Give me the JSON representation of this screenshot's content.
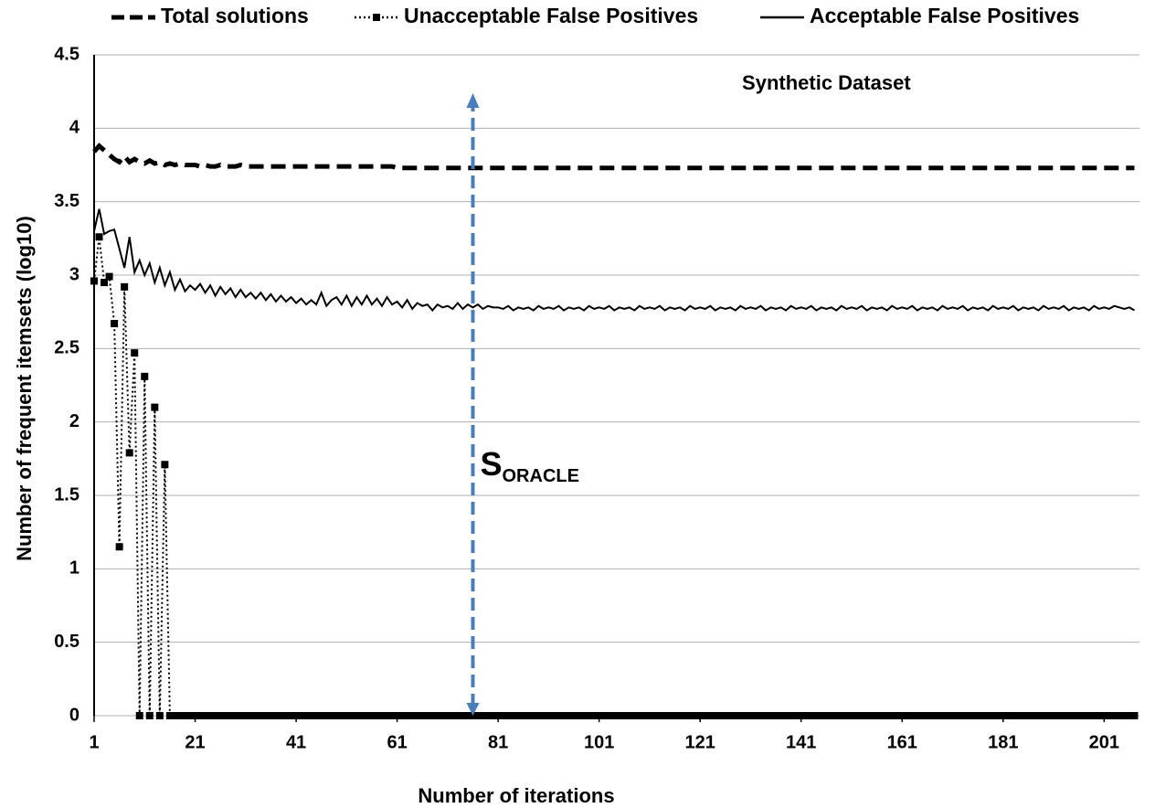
{
  "chart_data": {
    "type": "line",
    "x_label": "Number of iterations",
    "y_label": "Number of frequent itemsets (log10)",
    "annotations": [
      {
        "text": "Synthetic Dataset",
        "x": 146,
        "y": 4.3
      },
      {
        "text": "S",
        "subscript": "ORACLE",
        "x": 76,
        "y": 1.7
      }
    ],
    "xlim": [
      1,
      208
    ],
    "xticks": [
      1,
      21,
      41,
      61,
      81,
      101,
      121,
      141,
      161,
      181,
      201
    ],
    "ylim": [
      0,
      4.5
    ],
    "yticks": [
      0,
      0.5,
      1,
      1.5,
      2,
      2.5,
      3,
      3.5,
      4,
      4.5
    ],
    "grid": true,
    "legend": "top",
    "x": [
      1,
      2,
      3,
      4,
      5,
      6,
      7,
      8,
      9,
      10,
      11,
      12,
      13,
      14,
      15,
      16,
      17,
      18,
      19,
      20,
      21,
      22,
      23,
      24,
      25,
      26,
      27,
      28,
      29,
      30,
      31,
      32,
      33,
      34,
      35,
      36,
      37,
      38,
      39,
      40,
      41,
      42,
      43,
      44,
      45,
      46,
      47,
      48,
      49,
      50,
      51,
      52,
      53,
      54,
      55,
      56,
      57,
      58,
      59,
      60,
      61,
      62,
      63,
      64,
      65,
      66,
      67,
      68,
      69,
      70,
      71,
      72,
      73,
      74,
      75,
      76,
      77,
      78,
      79,
      80,
      81,
      82,
      83,
      84,
      85,
      86,
      87,
      88,
      89,
      90,
      91,
      92,
      93,
      94,
      95,
      96,
      97,
      98,
      99,
      100,
      101,
      102,
      103,
      104,
      105,
      106,
      107,
      108,
      109,
      110,
      111,
      112,
      113,
      114,
      115,
      116,
      117,
      118,
      119,
      120,
      121,
      122,
      123,
      124,
      125,
      126,
      127,
      128,
      129,
      130,
      131,
      132,
      133,
      134,
      135,
      136,
      137,
      138,
      139,
      140,
      141,
      142,
      143,
      144,
      145,
      146,
      147,
      148,
      149,
      150,
      151,
      152,
      153,
      154,
      155,
      156,
      157,
      158,
      159,
      160,
      161,
      162,
      163,
      164,
      165,
      166,
      167,
      168,
      169,
      170,
      171,
      172,
      173,
      174,
      175,
      176,
      177,
      178,
      179,
      180,
      181,
      182,
      183,
      184,
      185,
      186,
      187,
      188,
      189,
      190,
      191,
      192,
      193,
      194,
      195,
      196,
      197,
      198,
      199,
      200,
      201,
      202,
      203,
      204,
      205,
      206,
      207
    ],
    "series": [
      {
        "name": "Total solutions",
        "color": "#000000",
        "style": "dashed",
        "marker": "none",
        "values": [
          3.84,
          3.88,
          3.85,
          3.82,
          3.79,
          3.77,
          3.81,
          3.77,
          3.79,
          3.77,
          3.76,
          3.78,
          3.76,
          3.77,
          3.75,
          3.76,
          3.75,
          3.76,
          3.75,
          3.75,
          3.75,
          3.74,
          3.75,
          3.74,
          3.74,
          3.75,
          3.74,
          3.74,
          3.74,
          3.75,
          3.74,
          3.74,
          3.74,
          3.74,
          3.74,
          3.74,
          3.74,
          3.74,
          3.74,
          3.74,
          3.74,
          3.74,
          3.74,
          3.74,
          3.74,
          3.74,
          3.74,
          3.74,
          3.74,
          3.74,
          3.74,
          3.74,
          3.74,
          3.74,
          3.74,
          3.74,
          3.74,
          3.74,
          3.74,
          3.74,
          3.73,
          3.73,
          3.73,
          3.73,
          3.73,
          3.73,
          3.73,
          3.73,
          3.73,
          3.73,
          3.73,
          3.73,
          3.73,
          3.73,
          3.73,
          3.73,
          3.73,
          3.73,
          3.73,
          3.73,
          3.73,
          3.73,
          3.73,
          3.73,
          3.73,
          3.73,
          3.73,
          3.73,
          3.73,
          3.73,
          3.73,
          3.73,
          3.73,
          3.73,
          3.73,
          3.73,
          3.73,
          3.73,
          3.73,
          3.73,
          3.73,
          3.73,
          3.73,
          3.73,
          3.73,
          3.73,
          3.73,
          3.73,
          3.73,
          3.73,
          3.73,
          3.73,
          3.73,
          3.73,
          3.73,
          3.73,
          3.73,
          3.73,
          3.73,
          3.73,
          3.73,
          3.73,
          3.73,
          3.73,
          3.73,
          3.73,
          3.73,
          3.73,
          3.73,
          3.73,
          3.73,
          3.73,
          3.73,
          3.73,
          3.73,
          3.73,
          3.73,
          3.73,
          3.73,
          3.73,
          3.73,
          3.73,
          3.73,
          3.73,
          3.73,
          3.73,
          3.73,
          3.73,
          3.73,
          3.73,
          3.73,
          3.73,
          3.73,
          3.73,
          3.73,
          3.73,
          3.73,
          3.73,
          3.73,
          3.73,
          3.73,
          3.73,
          3.73,
          3.73,
          3.73,
          3.73,
          3.73,
          3.73,
          3.73,
          3.73,
          3.73,
          3.73,
          3.73,
          3.73,
          3.73,
          3.73,
          3.73,
          3.73,
          3.73,
          3.73,
          3.73,
          3.73,
          3.73,
          3.73,
          3.73,
          3.73,
          3.73,
          3.73,
          3.73,
          3.73,
          3.73,
          3.73,
          3.73,
          3.73,
          3.73,
          3.73,
          3.73,
          3.73,
          3.73,
          3.73,
          3.73,
          3.73,
          3.73,
          3.73,
          3.73,
          3.73,
          3.73
        ]
      },
      {
        "name": "Unacceptable False Positives",
        "color": "#000000",
        "style": "dotted",
        "marker": "square",
        "values": [
          2.96,
          3.26,
          2.95,
          2.99,
          2.67,
          1.15,
          2.92,
          1.79,
          2.47,
          0,
          2.31,
          0,
          2.1,
          0,
          1.71,
          0,
          0,
          0,
          0,
          0,
          0,
          0,
          0,
          0,
          0,
          0,
          0,
          0,
          0,
          0,
          0,
          0,
          0,
          0,
          0,
          0,
          0,
          0,
          0,
          0,
          0,
          0,
          0,
          0,
          0,
          0,
          0,
          0,
          0,
          0,
          0,
          0,
          0,
          0,
          0,
          0,
          0,
          0,
          0,
          0,
          0,
          0,
          0,
          0,
          0,
          0,
          0,
          0,
          0,
          0,
          0,
          0,
          0,
          0,
          0,
          0,
          0,
          0,
          0,
          0,
          0,
          0,
          0,
          0,
          0,
          0,
          0,
          0,
          0,
          0,
          0,
          0,
          0,
          0,
          0,
          0,
          0,
          0,
          0,
          0,
          0,
          0,
          0,
          0,
          0,
          0,
          0,
          0,
          0,
          0,
          0,
          0,
          0,
          0,
          0,
          0,
          0,
          0,
          0,
          0,
          0,
          0,
          0,
          0,
          0,
          0,
          0,
          0,
          0,
          0,
          0,
          0,
          0,
          0,
          0,
          0,
          0,
          0,
          0,
          0,
          0,
          0,
          0,
          0,
          0,
          0,
          0,
          0,
          0,
          0,
          0,
          0,
          0,
          0,
          0,
          0,
          0,
          0,
          0,
          0,
          0,
          0,
          0,
          0,
          0,
          0,
          0,
          0,
          0,
          0,
          0,
          0,
          0,
          0,
          0,
          0,
          0,
          0,
          0,
          0,
          0,
          0,
          0,
          0,
          0,
          0,
          0,
          0,
          0,
          0,
          0,
          0,
          0,
          0,
          0,
          0,
          0,
          0,
          0,
          0,
          0,
          0,
          0,
          0,
          0,
          0,
          0
        ]
      },
      {
        "name": "Acceptable False Positives",
        "color": "#000000",
        "style": "solid",
        "marker": "none",
        "values": [
          3.3,
          3.45,
          3.28,
          3.3,
          3.31,
          3.18,
          3.05,
          3.26,
          3.02,
          3.1,
          3.0,
          3.08,
          2.95,
          3.05,
          2.93,
          3.02,
          2.9,
          2.97,
          2.89,
          2.93,
          2.9,
          2.94,
          2.88,
          2.93,
          2.86,
          2.92,
          2.87,
          2.91,
          2.85,
          2.9,
          2.85,
          2.88,
          2.84,
          2.88,
          2.83,
          2.87,
          2.82,
          2.86,
          2.82,
          2.85,
          2.81,
          2.84,
          2.8,
          2.83,
          2.8,
          2.88,
          2.79,
          2.83,
          2.85,
          2.8,
          2.86,
          2.79,
          2.85,
          2.8,
          2.86,
          2.8,
          2.84,
          2.79,
          2.85,
          2.8,
          2.82,
          2.78,
          2.83,
          2.77,
          2.81,
          2.79,
          2.8,
          2.76,
          2.8,
          2.78,
          2.79,
          2.77,
          2.81,
          2.77,
          2.8,
          2.78,
          2.8,
          2.77,
          2.79,
          2.78,
          2.78,
          2.77,
          2.79,
          2.76,
          2.78,
          2.77,
          2.78,
          2.76,
          2.79,
          2.77,
          2.78,
          2.77,
          2.79,
          2.76,
          2.78,
          2.77,
          2.78,
          2.76,
          2.79,
          2.77,
          2.78,
          2.77,
          2.79,
          2.76,
          2.78,
          2.77,
          2.78,
          2.76,
          2.79,
          2.77,
          2.78,
          2.77,
          2.79,
          2.76,
          2.78,
          2.77,
          2.78,
          2.76,
          2.79,
          2.77,
          2.78,
          2.77,
          2.79,
          2.76,
          2.78,
          2.77,
          2.78,
          2.76,
          2.79,
          2.77,
          2.78,
          2.77,
          2.79,
          2.76,
          2.78,
          2.77,
          2.78,
          2.76,
          2.79,
          2.77,
          2.78,
          2.77,
          2.79,
          2.76,
          2.78,
          2.77,
          2.78,
          2.76,
          2.79,
          2.77,
          2.78,
          2.77,
          2.79,
          2.76,
          2.78,
          2.77,
          2.78,
          2.76,
          2.79,
          2.77,
          2.78,
          2.77,
          2.79,
          2.76,
          2.78,
          2.77,
          2.78,
          2.76,
          2.79,
          2.77,
          2.78,
          2.77,
          2.79,
          2.76,
          2.78,
          2.77,
          2.78,
          2.76,
          2.79,
          2.77,
          2.78,
          2.77,
          2.79,
          2.76,
          2.78,
          2.77,
          2.78,
          2.76,
          2.79,
          2.77,
          2.78,
          2.77,
          2.79,
          2.76,
          2.78,
          2.77,
          2.78,
          2.76,
          2.79,
          2.77,
          2.78,
          2.77,
          2.79,
          2.78,
          2.77,
          2.78,
          2.76
        ]
      }
    ]
  }
}
